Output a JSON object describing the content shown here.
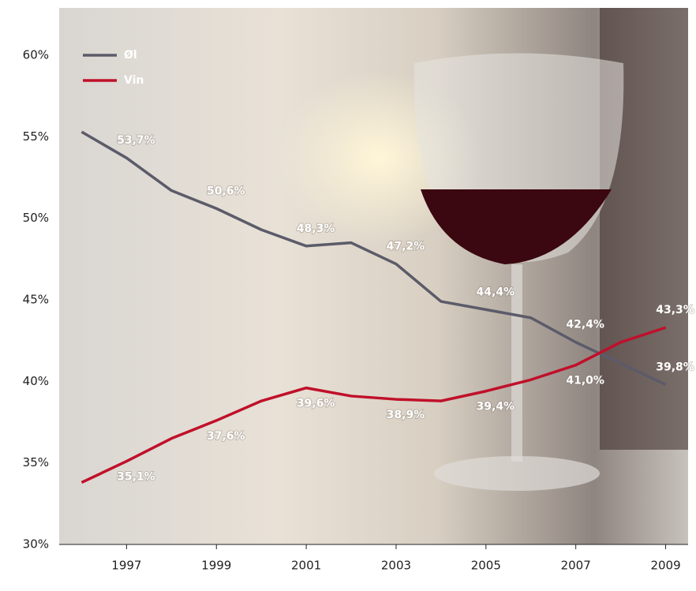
{
  "chart_data": {
    "type": "line",
    "x": [
      1996,
      1997,
      1998,
      1999,
      2000,
      2001,
      2002,
      2003,
      2004,
      2005,
      2006,
      2007,
      2008,
      2009
    ],
    "series": [
      {
        "name": "Øl",
        "color": "#5b5b69",
        "values": [
          55.3,
          53.7,
          51.7,
          50.6,
          49.3,
          48.3,
          48.5,
          47.2,
          44.9,
          44.4,
          43.9,
          42.4,
          41.1,
          39.8
        ],
        "value_labels": [
          null,
          "53,7%",
          null,
          "50,6%",
          null,
          "48,3%",
          null,
          "47,2%",
          null,
          "44,4%",
          null,
          "42,4%",
          null,
          "39,8%"
        ]
      },
      {
        "name": "Vin",
        "color": "#c0102a",
        "values": [
          33.8,
          35.1,
          36.5,
          37.6,
          38.8,
          39.6,
          39.1,
          38.9,
          38.8,
          39.4,
          40.1,
          41.0,
          42.4,
          43.3
        ],
        "value_labels": [
          null,
          "35,1%",
          null,
          "37,6%",
          null,
          "39,6%",
          null,
          "38,9%",
          null,
          "39,4%",
          null,
          "41,0%",
          null,
          "43,3%"
        ]
      }
    ],
    "xlim": [
      1995.5,
      2009.5
    ],
    "xticks": [
      1997,
      1999,
      2001,
      2003,
      2005,
      2007,
      2009
    ],
    "ylim": [
      30,
      60
    ],
    "yticks": [
      {
        "value": 30,
        "label": "30%"
      },
      {
        "value": 35,
        "label": "35%"
      },
      {
        "value": 40,
        "label": "40%"
      },
      {
        "value": 45,
        "label": "45%"
      },
      {
        "value": 50,
        "label": "50%"
      },
      {
        "value": 55,
        "label": "55%"
      },
      {
        "value": 60,
        "label": "60%"
      }
    ],
    "legend": "top-left"
  }
}
